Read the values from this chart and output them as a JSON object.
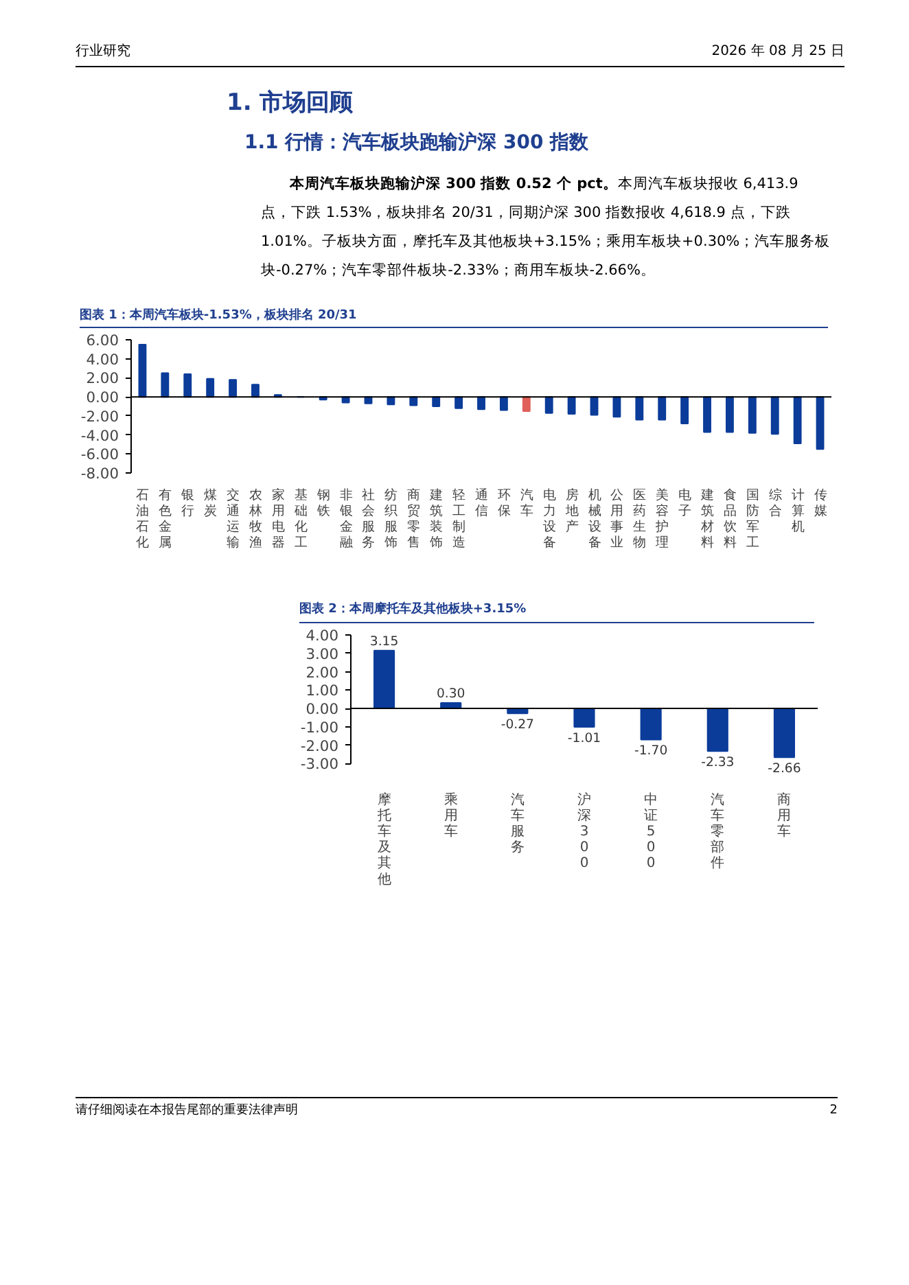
{
  "chart_data": [
    {
      "type": "bar",
      "title": "图表 1：本周汽车板块-1.53%，板块排名 20/31",
      "annotations": [
        "行业研究",
        "2026 年 08 月 25 日",
        "1.  市场回顾",
        "1.1 行情：汽车板块跑输沪深 300 指数",
        "本周汽车板块跑输沪深 300 指数 0.52 个 pct。",
        "本周汽车板块报收 6,413.9 点，下跌 1.53%，板块排名 20/31，同期沪深 300 指数报收 4,618.9 点，下跌 1.01%。子板块方面，摩托车及其他板块+3.15%；乘用车板块+0.30%；汽车服务板块-0.27%；汽车零部件板块-2.33%；商用车板块-2.66%。"
      ],
      "categories": [
        "石油石化",
        "有色金属",
        "银行",
        "煤炭",
        "交通运输",
        "农林牧渔",
        "家用电器",
        "基础化工",
        "钢铁",
        "非银金融",
        "社会服务",
        "纺织服饰",
        "商贸零售",
        "建筑装饰",
        "轻工制造",
        "通信",
        "环保",
        "汽车",
        "电力设备",
        "房地产",
        "机械设备",
        "公用事业",
        "医药生物",
        "美容护理",
        "电子",
        "建筑材料",
        "食品饮料",
        "国防军工",
        "综合",
        "计算机",
        "传媒"
      ],
      "values": [
        5.5,
        2.5,
        2.4,
        1.9,
        1.8,
        1.3,
        0.2,
        0.0,
        -0.3,
        -0.6,
        -0.7,
        -0.8,
        -0.9,
        -1.0,
        -1.2,
        -1.3,
        -1.4,
        -1.5,
        -1.7,
        -1.8,
        -1.9,
        -2.1,
        -2.4,
        -2.4,
        -2.8,
        -3.7,
        -3.7,
        -3.8,
        -3.9,
        -4.9,
        -5.5
      ],
      "colors": [
        "#0b3c9a",
        "#0b3c9a",
        "#0b3c9a",
        "#0b3c9a",
        "#0b3c9a",
        "#0b3c9a",
        "#0b3c9a",
        "#0b3c9a",
        "#0b3c9a",
        "#0b3c9a",
        "#0b3c9a",
        "#0b3c9a",
        "#0b3c9a",
        "#0b3c9a",
        "#0b3c9a",
        "#0b3c9a",
        "#0b3c9a",
        "#e0605a",
        "#0b3c9a",
        "#0b3c9a",
        "#0b3c9a",
        "#0b3c9a",
        "#0b3c9a",
        "#0b3c9a",
        "#0b3c9a",
        "#0b3c9a",
        "#0b3c9a",
        "#0b3c9a",
        "#0b3c9a",
        "#0b3c9a",
        "#0b3c9a"
      ],
      "ylim": [
        -8,
        6
      ],
      "yticks": [
        {
          "value": -8,
          "label": "-8.00"
        },
        {
          "value": -6,
          "label": "-6.00"
        },
        {
          "value": -4,
          "label": "-4.00"
        },
        {
          "value": -2,
          "label": "-2.00"
        },
        {
          "value": 0,
          "label": "0.00"
        },
        {
          "value": 2,
          "label": "2.00"
        },
        {
          "value": 4,
          "label": "4.00"
        },
        {
          "value": 6,
          "label": "6.00"
        }
      ]
    },
    {
      "type": "bar",
      "title": "图表 2：本周摩托车及其他板块+3.15%",
      "annotations": [
        "请仔细阅读在本报告尾部的重要法律声明",
        "2"
      ],
      "categories": [
        "摩托车及其他",
        "乘用车",
        "汽车服务",
        "沪深300",
        "中证500",
        "汽车零部件",
        "商用车"
      ],
      "values": [
        3.15,
        0.3,
        -0.27,
        -1.01,
        -1.7,
        -2.33,
        -2.66
      ],
      "value_labels": [
        "3.15",
        "0.30",
        "-0.27",
        "-1.01",
        "-1.70",
        "-2.33",
        "-2.66"
      ],
      "colors": [
        "#0b3c9a",
        "#0b3c9a",
        "#0b3c9a",
        "#0b3c9a",
        "#0b3c9a",
        "#0b3c9a",
        "#0b3c9a"
      ],
      "ylim": [
        -3,
        4
      ],
      "yticks": [
        {
          "value": -3,
          "label": "-3.00"
        },
        {
          "value": -2,
          "label": "-2.00"
        },
        {
          "value": -1,
          "label": "-1.00"
        },
        {
          "value": 0,
          "label": "0.00"
        },
        {
          "value": 1,
          "label": "1.00"
        },
        {
          "value": 2,
          "label": "2.00"
        },
        {
          "value": 3,
          "label": "3.00"
        },
        {
          "value": 4,
          "label": "4.00"
        }
      ]
    }
  ]
}
